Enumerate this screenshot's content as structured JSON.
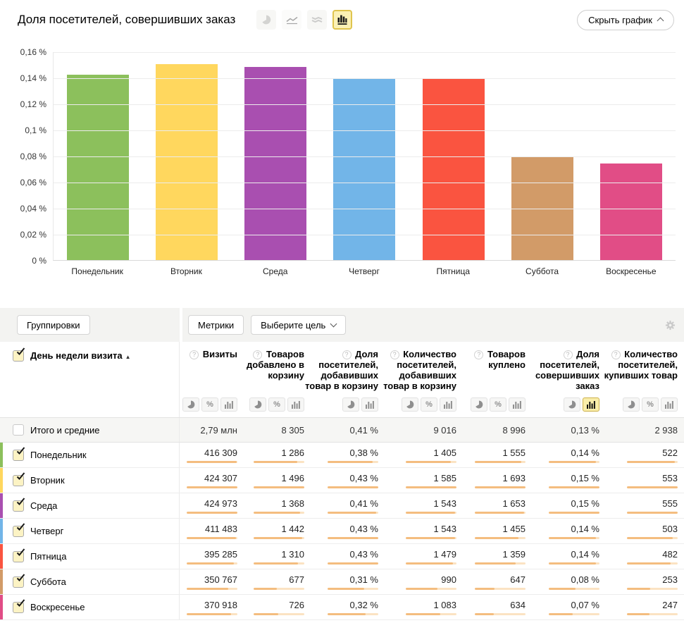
{
  "header": {
    "title": "Доля посетителей, совершивших заказ",
    "chart_type_icons": [
      {
        "name": "pie-chart-icon",
        "selected": false
      },
      {
        "name": "line-chart-icon",
        "selected": false
      },
      {
        "name": "stacked-chart-icon",
        "selected": false
      },
      {
        "name": "bar-chart-icon",
        "selected": true
      }
    ],
    "hide_chart_label": "Скрыть график"
  },
  "chart_data": {
    "type": "bar",
    "title": "Доля посетителей, совершивших заказ",
    "categories": [
      "Понедельник",
      "Вторник",
      "Среда",
      "Четверг",
      "Пятница",
      "Суббота",
      "Воскресенье"
    ],
    "values": [
      0.142,
      0.15,
      0.148,
      0.139,
      0.139,
      0.079,
      0.074
    ],
    "colors": [
      "#8cc05c",
      "#ffd75e",
      "#a94fb0",
      "#72b5e8",
      "#fa5440",
      "#d29b68",
      "#e14d86"
    ],
    "unit": "%",
    "ylim": [
      0,
      0.16
    ],
    "ytick_labels": [
      "0,16 %",
      "0,14 %",
      "0,12 %",
      "0,1 %",
      "0,08 %",
      "0,06 %",
      "0,04 %",
      "0,02 %",
      "0 %"
    ],
    "grid": true,
    "legend": false
  },
  "toolbar": {
    "groupings_label": "Группировки",
    "metrics_label": "Метрики",
    "goal_label": "Выберите цель"
  },
  "table": {
    "row_header": {
      "label": "День недели визита",
      "sort_arrow": "▲",
      "checked": true
    },
    "help_icon_glyph": "?",
    "columns": [
      {
        "label": "Визиты",
        "toggles": [
          "pie",
          "percent",
          "bars"
        ],
        "selected": null
      },
      {
        "label": "Товаров добавлено в корзину",
        "toggles": [
          "pie",
          "percent",
          "bars"
        ],
        "selected": null
      },
      {
        "label": "Доля посетителей, добавивших товар в корзину",
        "toggles": [
          "pie",
          "bars"
        ],
        "selected": null
      },
      {
        "label": "Количество посетителей, добавивших товар в корзину",
        "toggles": [
          "pie",
          "percent",
          "bars"
        ],
        "selected": null
      },
      {
        "label": "Товаров куплено",
        "toggles": [
          "pie",
          "percent",
          "bars"
        ],
        "selected": null
      },
      {
        "label": "Доля посетителей, совершивших заказ",
        "toggles": [
          "pie",
          "bars"
        ],
        "selected": "bars"
      },
      {
        "label": "Количество посетителей, купивших товар",
        "toggles": [
          "pie",
          "percent",
          "bars"
        ],
        "selected": null
      }
    ],
    "totals": {
      "label": "Итого и средние",
      "checked": false,
      "values": [
        "2,79 млн",
        "8 305",
        "0,41 %",
        "9 016",
        "8 996",
        "0,13 %",
        "2 938"
      ]
    },
    "rows": [
      {
        "label": "Понедельник",
        "color": "#8cc05c",
        "checked": true,
        "values": [
          "416 309",
          "1 286",
          "0,38 %",
          "1 405",
          "1 555",
          "0,14 %",
          "522"
        ]
      },
      {
        "label": "Вторник",
        "color": "#ffd75e",
        "checked": true,
        "values": [
          "424 307",
          "1 496",
          "0,43 %",
          "1 585",
          "1 693",
          "0,15 %",
          "553"
        ]
      },
      {
        "label": "Среда",
        "color": "#a94fb0",
        "checked": true,
        "values": [
          "424 973",
          "1 368",
          "0,41 %",
          "1 543",
          "1 653",
          "0,15 %",
          "555"
        ]
      },
      {
        "label": "Четверг",
        "color": "#72b5e8",
        "checked": true,
        "values": [
          "411 483",
          "1 442",
          "0,43 %",
          "1 543",
          "1 455",
          "0,14 %",
          "503"
        ]
      },
      {
        "label": "Пятница",
        "color": "#fa5440",
        "checked": true,
        "values": [
          "395 285",
          "1 310",
          "0,43 %",
          "1 479",
          "1 359",
          "0,14 %",
          "482"
        ]
      },
      {
        "label": "Суббота",
        "color": "#d29b68",
        "checked": true,
        "values": [
          "350 767",
          "677",
          "0,31 %",
          "990",
          "647",
          "0,08 %",
          "253"
        ]
      },
      {
        "label": "Воскресенье",
        "color": "#e14d86",
        "checked": true,
        "values": [
          "370 918",
          "726",
          "0,32 %",
          "1 083",
          "634",
          "0,07 %",
          "247"
        ]
      }
    ]
  }
}
